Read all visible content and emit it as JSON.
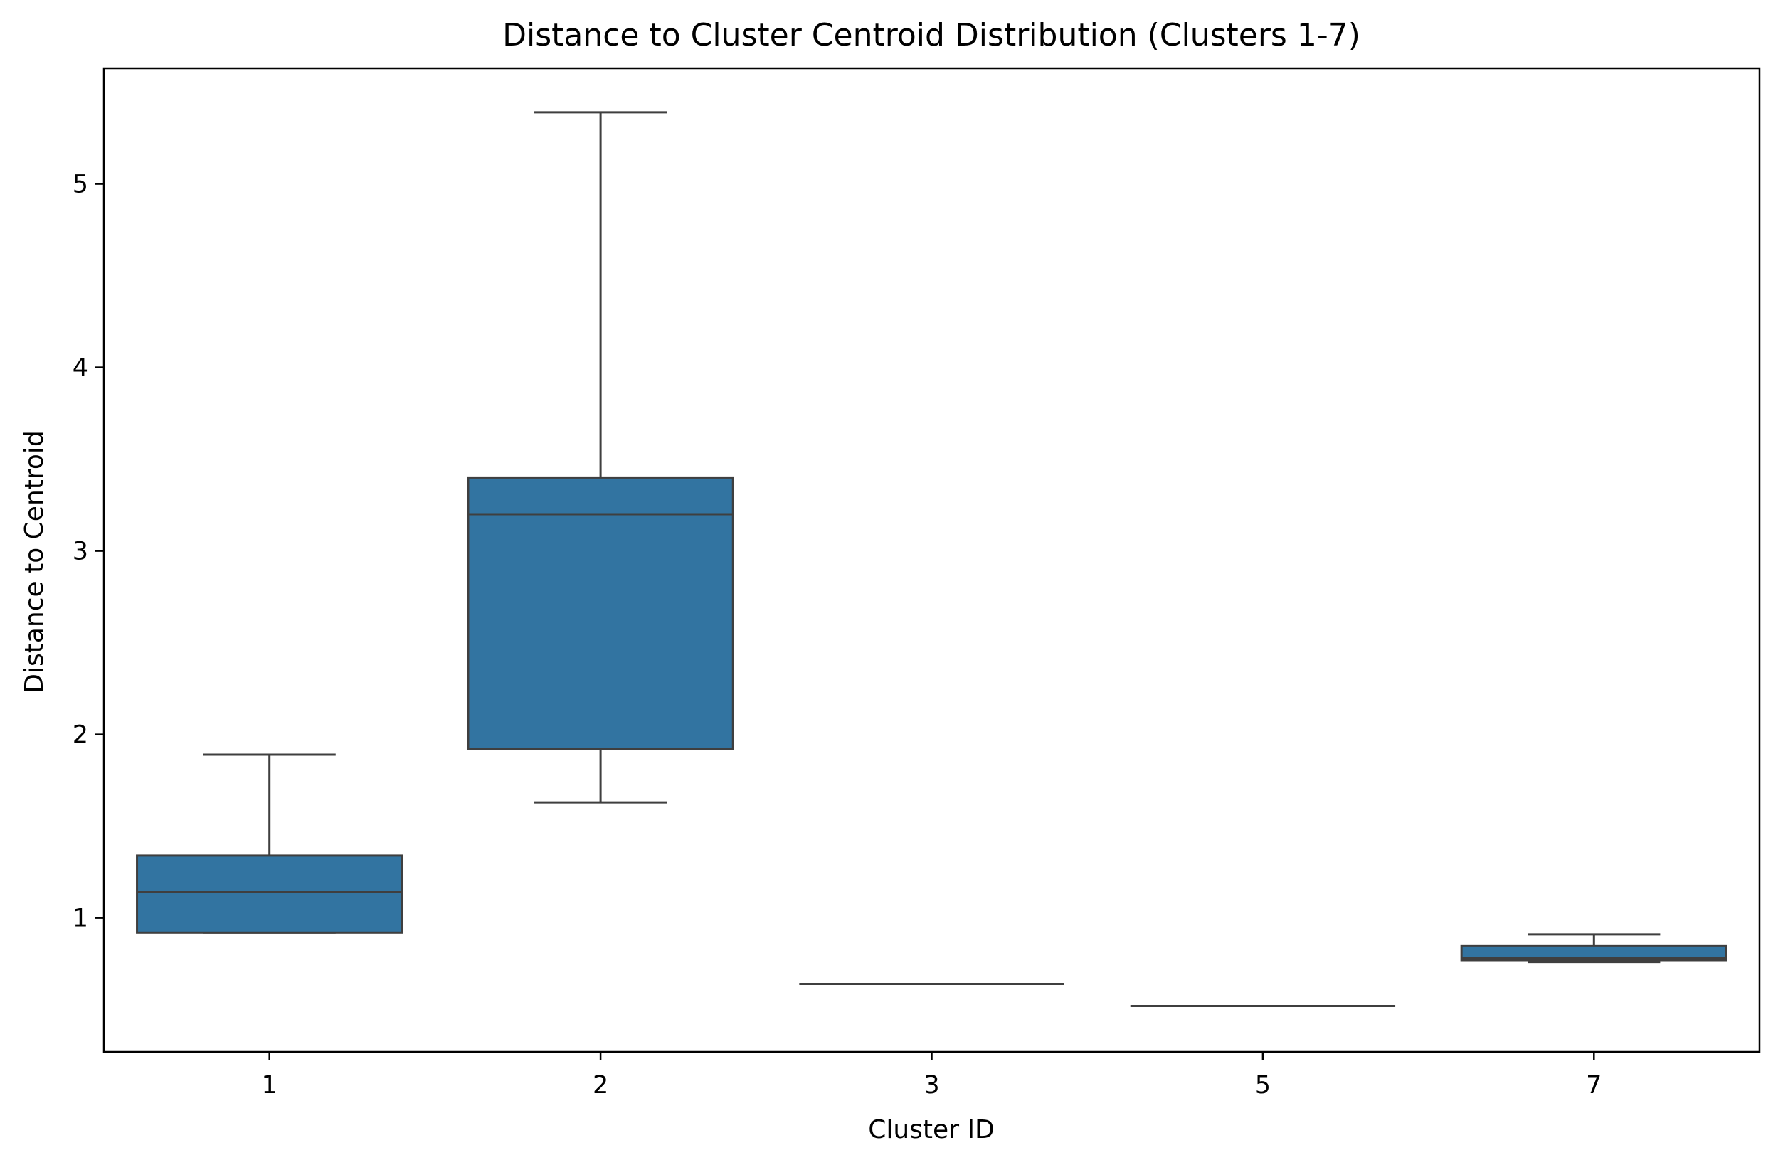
{
  "chart_data": {
    "type": "box",
    "title": "Distance to Cluster Centroid Distribution (Clusters 1-7)",
    "xlabel": "Cluster ID",
    "ylabel": "Distance to Centroid",
    "categories": [
      "1",
      "2",
      "3",
      "5",
      "7"
    ],
    "ylim": [
      0.27,
      5.63
    ],
    "yticks": [
      1,
      2,
      3,
      4,
      5
    ],
    "grid": false,
    "legend": "none",
    "boxes": [
      {
        "category": "1",
        "whisker_low": 0.92,
        "q1": 0.92,
        "median": 1.14,
        "q3": 1.34,
        "whisker_high": 1.89
      },
      {
        "category": "2",
        "whisker_low": 1.63,
        "q1": 1.92,
        "median": 3.2,
        "q3": 3.4,
        "whisker_high": 5.39
      },
      {
        "category": "3",
        "whisker_low": 0.64,
        "q1": 0.64,
        "median": 0.64,
        "q3": 0.64,
        "whisker_high": 0.64
      },
      {
        "category": "5",
        "whisker_low": 0.52,
        "q1": 0.52,
        "median": 0.52,
        "q3": 0.52,
        "whisker_high": 0.52
      },
      {
        "category": "7",
        "whisker_low": 0.76,
        "q1": 0.77,
        "median": 0.78,
        "q3": 0.85,
        "whisker_high": 0.91
      }
    ],
    "colors": {
      "box_fill": "#3274a1",
      "box_edge": "#3f3f3f"
    }
  }
}
